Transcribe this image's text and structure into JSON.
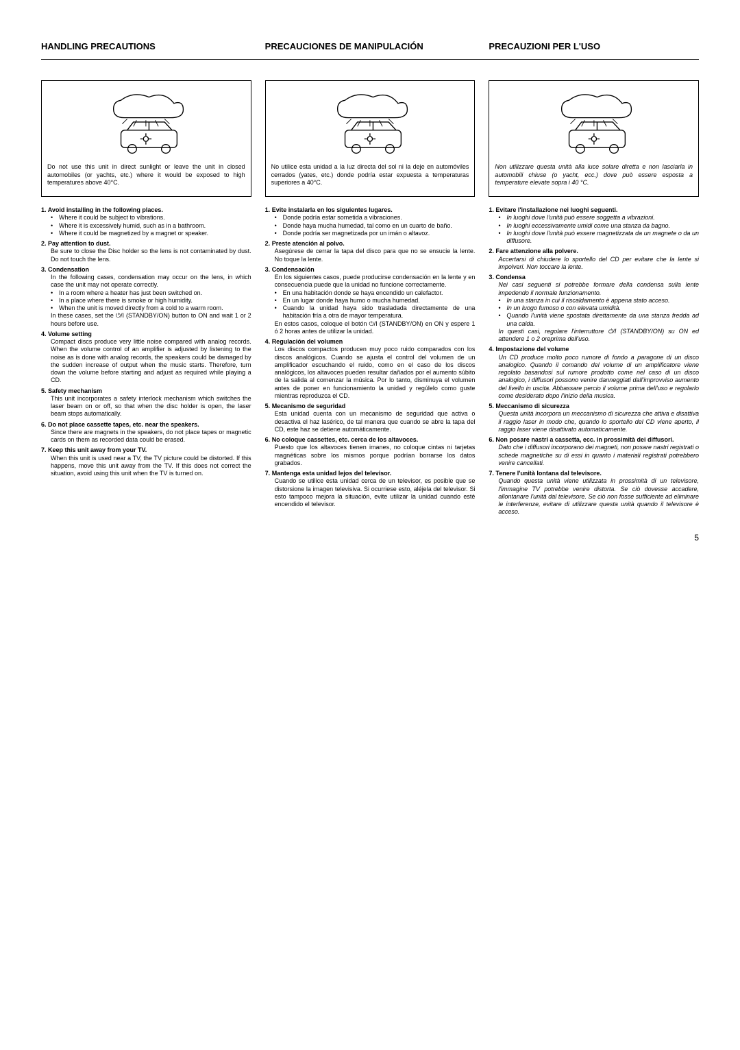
{
  "headers": {
    "en": "HANDLING PRECAUTIONS",
    "es": "PRECAUCIONES DE MANIPULACIÓN",
    "it": "PRECAUZIONI PER L'USO"
  },
  "captions": {
    "en": "Do not use this unit in direct sunlight or leave the unit in closed automobiles (or yachts, etc.) where it would be exposed to high temperatures above 40°C.",
    "es": "No utilice esta unidad a la luz directa del sol ni la deje en automóviles cerrados (yates, etc.) donde podría estar expuesta a temperaturas superiores a 40°C.",
    "it": "Non utilizzare questa unità alla luce solare diretta e non lasciarla in automobili chiuse (o yacht, ecc.) dove può essere esposta a temperature elevate sopra i 40 °C."
  },
  "en": [
    {
      "n": "1.",
      "t": "Avoid installing in the following places.",
      "sub": [
        "Where it could be subject to vibrations.",
        "Where it is excessively humid, such as in a bathroom.",
        "Where it could be magnetized by a magnet or speaker."
      ]
    },
    {
      "n": "2.",
      "t": "Pay attention to dust.",
      "d": "Be sure to close the Disc holder so the lens is not contaminated by dust. Do not touch the lens."
    },
    {
      "n": "3.",
      "t": "Condensation",
      "d": "In the following cases, condensation may occur on the lens, in which case the unit may not operate correctly.",
      "sub": [
        "In a room where a heater has just been switched on.",
        "In a place where there is smoke or high humidity.",
        "When the unit is moved directly from a cold to a warm room."
      ],
      "after": "In these cases, set the ⏻/I (STANDBY/ON) button to ON and wait 1 or 2 hours before use."
    },
    {
      "n": "4.",
      "t": "Volume setting",
      "d": "Compact discs produce very little noise compared with analog records. When the volume control of an amplifier is adjusted by listening to the noise as is done with analog records, the speakers could be damaged by the sudden increase of output when the music starts. Therefore, turn down the volume before starting and adjust as required while playing a CD."
    },
    {
      "n": "5.",
      "t": "Safety mechanism",
      "d": "This unit incorporates a safety interlock mechanism which switches the laser beam on or off, so that when the disc holder is open, the laser beam stops automatically."
    },
    {
      "n": "6.",
      "t": "Do not place cassette tapes, etc. near the speakers.",
      "d": "Since there are magnets in the speakers, do not place tapes or magnetic cards on them as recorded data could be erased."
    },
    {
      "n": "7.",
      "t": "Keep this unit away from your TV.",
      "d": "When this unit is used near a TV, the TV picture could be distorted. If this happens, move this unit away from the TV. If this does not correct the situation, avoid using this unit when the TV is turned on."
    }
  ],
  "es": [
    {
      "n": "1.",
      "t": "Evite instalarla en los siguientes lugares.",
      "sub": [
        "Donde podría estar sometida a vibraciones.",
        "Donde haya mucha humedad, tal como en un cuarto de baño.",
        "Donde podría ser magnetizada por un imán o altavoz."
      ]
    },
    {
      "n": "2.",
      "t": "Preste atención al polvo.",
      "d": "Asegúrese de cerrar la tapa del disco para que no se ensucie la lente. No toque la lente."
    },
    {
      "n": "3.",
      "t": "Condensación",
      "d": "En los siguientes casos, puede producirse condensación en la lente y en consecuencia puede que la unidad no funcione correctamente.",
      "sub": [
        "En una habitación donde se haya encendido un calefactor.",
        "En un lugar donde haya humo o mucha humedad.",
        "Cuando la unidad haya sido trasladada directamente de una habitación fría a otra de mayor temperatura."
      ],
      "after": "En estos casos, coloque el botón ⏻/I (STANDBY/ON) en ON y espere 1 ó 2 horas antes de utilizar la unidad."
    },
    {
      "n": "4.",
      "t": "Regulación del volumen",
      "d": "Los discos compactos producen muy poco ruido comparados con los discos analógicos. Cuando se ajusta el control del volumen de un amplificador escuchando el ruido, como en el caso de los discos analógicos, los altavoces pueden resultar dañados por el aumento súbito de la salida al comenzar la música. Por lo tanto, disminuya el volumen antes de poner en funcionamiento la unidad y regúlelo como guste mientras reproduzca el CD."
    },
    {
      "n": "5.",
      "t": "Mecanismo de seguridad",
      "d": "Esta unidad cuenta con un mecanismo de seguridad que activa o desactiva el haz lasérico, de tal manera que cuando se abre la tapa del CD, este haz se detiene automáticamente."
    },
    {
      "n": "6.",
      "t": "No coloque cassettes, etc. cerca de los altavoces.",
      "d": "Puesto que los altavoces tienen imanes, no coloque cintas ni tarjetas magnéticas sobre los mismos porque podrían borrarse los datos grabados."
    },
    {
      "n": "7.",
      "t": "Mantenga esta unidad lejos del televisor.",
      "d": "Cuando se utilice esta unidad cerca de un televisor, es posible que se distorsione la imagen televisiva. Si ocurriese esto, aléjela del televisor. Si esto tampoco mejora la situación, evite utilizar la unidad cuando esté encendido el televisor."
    }
  ],
  "it": [
    {
      "n": "1.",
      "t": "Evitare l'installazione nei luoghi seguenti.",
      "sub": [
        "In luoghi dove l'unità può essere soggetta a vibrazioni.",
        "In luoghi eccessivamente umidi come una stanza da bagno.",
        "In luoghi dove l'unità può essere magnetizzata da un magnete o da un diffusore."
      ]
    },
    {
      "n": "2.",
      "t": "Fare attenzione alla polvere.",
      "d": "Accertarsi di chiudere lo sportello del CD per evitare che la lente si impolveri. Non toccare la lente."
    },
    {
      "n": "3.",
      "t": "Condensa",
      "d": "Nei casi seguenti si potrebbe formare della condensa sulla lente impedendo il normale funzionamento.",
      "sub": [
        "In una stanza in cui il riscaldamento è appena stato acceso.",
        "In un luogo fumoso o con elevata umidità.",
        "Quando l'unità viene spostata direttamente da una stanza fredda ad una calda."
      ],
      "after": "In questi casi, regolare l'interruttore ⏻/I (STANDBY/ON) su ON ed attendere 1 o 2 oreprima dell'uso."
    },
    {
      "n": "4.",
      "t": "Impostazione del volume",
      "d": "Un CD produce molto poco rumore di fondo a paragone di un disco analogico. Quando il comando del volume di un amplificatore viene regolato basandosi sul rumore prodotto come nel caso di un disco analogico, i diffusori possono venire danneggiati dall'improvviso aumento del livello in uscita. Abbassare percio il volume prima dell'uso e regolarlo come desiderato dopo l'inizio della musica."
    },
    {
      "n": "5.",
      "t": "Meccanismo di sicurezza",
      "d": "Questa unità incorpora un meccanismo di sicurezza che attiva e disattiva il raggio laser in modo che, quando lo sportello del CD viene aperto, il raggio laser viene disattivato automaticamente."
    },
    {
      "n": "6.",
      "t": "Non posare nastri a cassetta, ecc. in prossimità dei diffusori.",
      "d": "Dato che i diffusori incorporano dei magneti, non posare nastri registrati o schede magnetiche su di essi in quanto i materiali registrati potrebbero venire cancellati."
    },
    {
      "n": "7.",
      "t": "Tenere l'unità lontana dal televisore.",
      "d": "Quando questa unità viene utilizzata in prossimità di un televisore, l'immagine TV potrebbe venire distorta. Se ciò dovesse accadere, allontanare l'unità dal televisore. Se ciò non fosse sufficiente ad eliminare le interferenze, evitare di utilizzare questa unità quando il televisore è acceso."
    }
  ],
  "pageno": "5"
}
